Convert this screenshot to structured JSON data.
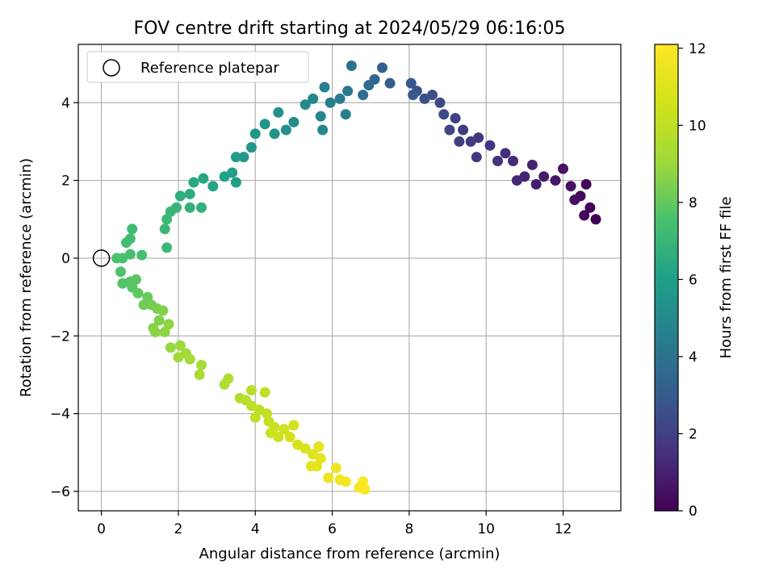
{
  "chart_data": {
    "type": "scatter",
    "title": "FOV centre drift starting at 2024/05/29 06:16:05",
    "xlabel": "Angular distance from reference (arcmin)",
    "ylabel": "Rotation from reference (arcmin)",
    "xlim": [
      -0.6,
      13.5
    ],
    "ylim": [
      -6.5,
      5.5
    ],
    "xticks": [
      "0",
      "2",
      "4",
      "6",
      "8",
      "10",
      "12"
    ],
    "yticks": [
      "−6",
      "−4",
      "−2",
      "0",
      "2",
      "4"
    ],
    "grid": true,
    "legend": {
      "placement": "top-left",
      "entries": [
        "Reference platepar"
      ]
    },
    "reference_point": {
      "x": 0,
      "y": 0
    },
    "colormap": "viridis",
    "colorbar": {
      "label": "Hours from first FF file",
      "range": [
        0,
        12.1
      ],
      "ticks": [
        "0",
        "2",
        "4",
        "6",
        "8",
        "10",
        "12"
      ]
    },
    "series": [
      {
        "values": [
          {
            "x": 12.85,
            "y": 1.0,
            "h": 0.0
          },
          {
            "x": 12.7,
            "y": 1.3,
            "h": 0.1
          },
          {
            "x": 12.6,
            "y": 1.9,
            "h": 0.15
          },
          {
            "x": 12.55,
            "y": 1.1,
            "h": 0.2
          },
          {
            "x": 12.45,
            "y": 1.6,
            "h": 0.3
          },
          {
            "x": 12.3,
            "y": 1.5,
            "h": 0.4
          },
          {
            "x": 12.2,
            "y": 1.85,
            "h": 0.5
          },
          {
            "x": 12.0,
            "y": 2.3,
            "h": 0.6
          },
          {
            "x": 11.8,
            "y": 2.0,
            "h": 0.7
          },
          {
            "x": 11.5,
            "y": 2.1,
            "h": 0.8
          },
          {
            "x": 11.3,
            "y": 1.9,
            "h": 0.9
          },
          {
            "x": 11.2,
            "y": 2.4,
            "h": 1.0
          },
          {
            "x": 11.0,
            "y": 2.1,
            "h": 1.1
          },
          {
            "x": 10.8,
            "y": 2.0,
            "h": 1.2
          },
          {
            "x": 10.7,
            "y": 2.5,
            "h": 1.3
          },
          {
            "x": 10.5,
            "y": 2.7,
            "h": 1.4
          },
          {
            "x": 10.3,
            "y": 2.5,
            "h": 1.5
          },
          {
            "x": 10.1,
            "y": 2.9,
            "h": 1.6
          },
          {
            "x": 9.8,
            "y": 3.1,
            "h": 1.7
          },
          {
            "x": 9.75,
            "y": 2.6,
            "h": 1.75
          },
          {
            "x": 9.6,
            "y": 3.0,
            "h": 1.85
          },
          {
            "x": 9.4,
            "y": 3.3,
            "h": 1.9
          },
          {
            "x": 9.3,
            "y": 3.0,
            "h": 2.0
          },
          {
            "x": 9.2,
            "y": 3.6,
            "h": 2.1
          },
          {
            "x": 9.05,
            "y": 3.3,
            "h": 2.2
          },
          {
            "x": 8.9,
            "y": 3.7,
            "h": 2.3
          },
          {
            "x": 8.8,
            "y": 4.0,
            "h": 2.4
          },
          {
            "x": 8.6,
            "y": 4.2,
            "h": 2.5
          },
          {
            "x": 8.4,
            "y": 4.1,
            "h": 2.6
          },
          {
            "x": 8.2,
            "y": 4.3,
            "h": 2.7
          },
          {
            "x": 8.05,
            "y": 4.5,
            "h": 2.8
          },
          {
            "x": 8.1,
            "y": 4.2,
            "h": 2.9
          },
          {
            "x": 7.5,
            "y": 4.5,
            "h": 3.0
          },
          {
            "x": 7.3,
            "y": 4.9,
            "h": 3.2
          },
          {
            "x": 7.1,
            "y": 4.6,
            "h": 3.4
          },
          {
            "x": 6.95,
            "y": 4.45,
            "h": 3.6
          },
          {
            "x": 6.8,
            "y": 4.2,
            "h": 3.8
          },
          {
            "x": 6.5,
            "y": 4.95,
            "h": 4.0
          },
          {
            "x": 6.4,
            "y": 4.3,
            "h": 4.2
          },
          {
            "x": 6.2,
            "y": 4.1,
            "h": 4.4
          },
          {
            "x": 6.35,
            "y": 3.7,
            "h": 4.5
          },
          {
            "x": 5.95,
            "y": 4.0,
            "h": 4.6
          },
          {
            "x": 5.8,
            "y": 4.4,
            "h": 4.7
          },
          {
            "x": 5.7,
            "y": 3.65,
            "h": 4.8
          },
          {
            "x": 5.75,
            "y": 3.3,
            "h": 4.85
          },
          {
            "x": 5.5,
            "y": 4.1,
            "h": 4.9
          },
          {
            "x": 5.3,
            "y": 3.95,
            "h": 5.0
          },
          {
            "x": 5.0,
            "y": 3.5,
            "h": 5.1
          },
          {
            "x": 4.8,
            "y": 3.3,
            "h": 5.2
          },
          {
            "x": 4.6,
            "y": 3.75,
            "h": 5.3
          },
          {
            "x": 4.5,
            "y": 3.2,
            "h": 5.4
          },
          {
            "x": 4.25,
            "y": 3.45,
            "h": 5.5
          },
          {
            "x": 4.0,
            "y": 3.2,
            "h": 5.6
          },
          {
            "x": 3.9,
            "y": 2.85,
            "h": 5.7
          },
          {
            "x": 3.7,
            "y": 2.6,
            "h": 5.8
          },
          {
            "x": 3.5,
            "y": 2.6,
            "h": 5.9
          },
          {
            "x": 3.4,
            "y": 2.2,
            "h": 6.0
          },
          {
            "x": 3.5,
            "y": 1.95,
            "h": 6.05
          },
          {
            "x": 3.2,
            "y": 2.1,
            "h": 6.1
          },
          {
            "x": 2.9,
            "y": 1.85,
            "h": 6.2
          },
          {
            "x": 2.65,
            "y": 2.05,
            "h": 6.3
          },
          {
            "x": 2.4,
            "y": 1.95,
            "h": 6.4
          },
          {
            "x": 2.3,
            "y": 1.65,
            "h": 6.5
          },
          {
            "x": 2.05,
            "y": 1.6,
            "h": 6.6
          },
          {
            "x": 2.6,
            "y": 1.3,
            "h": 6.7
          },
          {
            "x": 2.3,
            "y": 1.3,
            "h": 6.8
          },
          {
            "x": 1.95,
            "y": 1.3,
            "h": 6.9
          },
          {
            "x": 1.8,
            "y": 1.2,
            "h": 7.0
          },
          {
            "x": 1.65,
            "y": 0.75,
            "h": 7.05
          },
          {
            "x": 1.7,
            "y": 1.0,
            "h": 7.1
          },
          {
            "x": 1.7,
            "y": 0.27,
            "h": 7.15
          },
          {
            "x": 0.8,
            "y": 0.75,
            "h": 7.2
          },
          {
            "x": 0.75,
            "y": 0.5,
            "h": 7.3
          },
          {
            "x": 0.65,
            "y": 0.4,
            "h": 7.35
          },
          {
            "x": 1.05,
            "y": 0.08,
            "h": 7.4
          },
          {
            "x": 0.75,
            "y": 0.1,
            "h": 7.45
          },
          {
            "x": 0.55,
            "y": 0.0,
            "h": 7.5
          },
          {
            "x": 0.4,
            "y": 0.0,
            "h": 7.55
          },
          {
            "x": 0.5,
            "y": -0.35,
            "h": 7.6
          },
          {
            "x": 0.55,
            "y": -0.65,
            "h": 7.7
          },
          {
            "x": 0.75,
            "y": -0.6,
            "h": 7.75
          },
          {
            "x": 0.8,
            "y": -0.75,
            "h": 7.8
          },
          {
            "x": 0.9,
            "y": -0.55,
            "h": 7.85
          },
          {
            "x": 0.95,
            "y": -0.9,
            "h": 7.95
          },
          {
            "x": 1.2,
            "y": -1.0,
            "h": 8.1
          },
          {
            "x": 1.1,
            "y": -1.2,
            "h": 8.2
          },
          {
            "x": 1.3,
            "y": -1.2,
            "h": 8.3
          },
          {
            "x": 1.45,
            "y": -1.3,
            "h": 8.4
          },
          {
            "x": 1.5,
            "y": -1.6,
            "h": 8.5
          },
          {
            "x": 1.6,
            "y": -1.35,
            "h": 8.55
          },
          {
            "x": 1.35,
            "y": -1.8,
            "h": 8.6
          },
          {
            "x": 1.4,
            "y": -1.9,
            "h": 8.7
          },
          {
            "x": 1.65,
            "y": -1.9,
            "h": 8.75
          },
          {
            "x": 1.75,
            "y": -1.7,
            "h": 8.8
          },
          {
            "x": 1.8,
            "y": -2.3,
            "h": 8.9
          },
          {
            "x": 2.05,
            "y": -2.25,
            "h": 9.0
          },
          {
            "x": 2.2,
            "y": -2.45,
            "h": 9.1
          },
          {
            "x": 2.0,
            "y": -2.55,
            "h": 9.15
          },
          {
            "x": 2.3,
            "y": -2.6,
            "h": 9.2
          },
          {
            "x": 2.6,
            "y": -2.75,
            "h": 9.3
          },
          {
            "x": 2.55,
            "y": -3.0,
            "h": 9.35
          },
          {
            "x": 3.2,
            "y": -3.25,
            "h": 9.5
          },
          {
            "x": 3.3,
            "y": -3.1,
            "h": 9.55
          },
          {
            "x": 3.6,
            "y": -3.6,
            "h": 9.65
          },
          {
            "x": 3.75,
            "y": -3.65,
            "h": 9.75
          },
          {
            "x": 3.9,
            "y": -3.4,
            "h": 9.8
          },
          {
            "x": 3.9,
            "y": -3.8,
            "h": 9.85
          },
          {
            "x": 4.1,
            "y": -3.9,
            "h": 9.95
          },
          {
            "x": 4.25,
            "y": -3.45,
            "h": 10.0
          },
          {
            "x": 4.0,
            "y": -4.1,
            "h": 10.05
          },
          {
            "x": 4.3,
            "y": -4.0,
            "h": 10.1
          },
          {
            "x": 4.35,
            "y": -4.2,
            "h": 10.2
          },
          {
            "x": 4.5,
            "y": -4.35,
            "h": 10.3
          },
          {
            "x": 4.4,
            "y": -4.5,
            "h": 10.35
          },
          {
            "x": 4.6,
            "y": -4.6,
            "h": 10.45
          },
          {
            "x": 4.75,
            "y": -4.4,
            "h": 10.5
          },
          {
            "x": 5.0,
            "y": -4.3,
            "h": 10.55
          },
          {
            "x": 4.9,
            "y": -4.6,
            "h": 10.65
          },
          {
            "x": 5.1,
            "y": -4.8,
            "h": 10.75
          },
          {
            "x": 5.3,
            "y": -4.9,
            "h": 10.85
          },
          {
            "x": 5.5,
            "y": -5.05,
            "h": 10.95
          },
          {
            "x": 5.45,
            "y": -5.35,
            "h": 11.05
          },
          {
            "x": 5.65,
            "y": -4.85,
            "h": 11.1
          },
          {
            "x": 5.7,
            "y": -5.15,
            "h": 11.2
          },
          {
            "x": 5.6,
            "y": -5.35,
            "h": 11.3
          },
          {
            "x": 5.9,
            "y": -5.65,
            "h": 11.45
          },
          {
            "x": 6.1,
            "y": -5.4,
            "h": 11.55
          },
          {
            "x": 6.2,
            "y": -5.7,
            "h": 11.65
          },
          {
            "x": 6.35,
            "y": -5.75,
            "h": 11.75
          },
          {
            "x": 6.7,
            "y": -5.9,
            "h": 11.85
          },
          {
            "x": 6.8,
            "y": -5.75,
            "h": 11.95
          },
          {
            "x": 6.85,
            "y": -5.95,
            "h": 12.05
          }
        ]
      }
    ]
  }
}
